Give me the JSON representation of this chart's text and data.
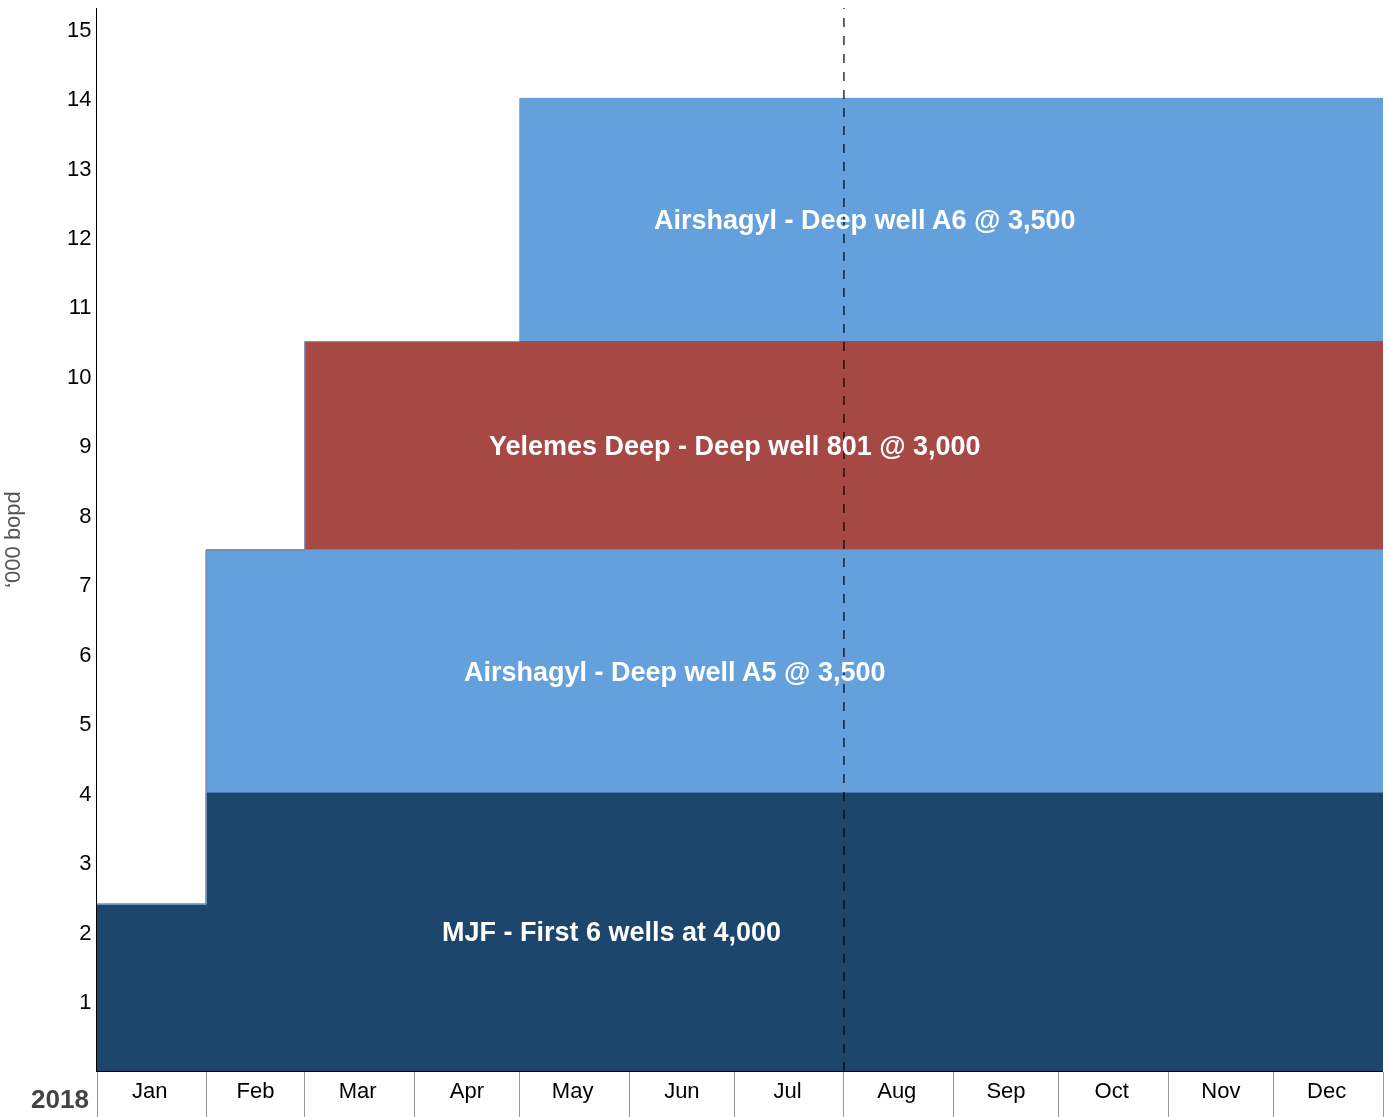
{
  "chart_data": {
    "type": "area",
    "stacked": true,
    "ylabel": "‘000 bopd",
    "x": [
      "2018-01",
      "2018-02",
      "2018-02",
      "2018-03",
      "2018-03",
      "2018-05",
      "2018-05",
      "2019-01"
    ],
    "xlim": [
      "2018-01",
      "2019-01"
    ],
    "xticks": [
      {
        "value": "2018-01-16",
        "label": "Jan"
      },
      {
        "value": "2018-02-15",
        "label": "Feb"
      },
      {
        "value": "2018-03-16",
        "label": "Mar"
      },
      {
        "value": "2018-04-16",
        "label": "Apr"
      },
      {
        "value": "2018-05-16",
        "label": "May"
      },
      {
        "value": "2018-06-16",
        "label": "Jun"
      },
      {
        "value": "2018-07-16",
        "label": "Jul"
      },
      {
        "value": "2018-08-16",
        "label": "Aug"
      },
      {
        "value": "2018-09-16",
        "label": "Sep"
      },
      {
        "value": "2018-10-16",
        "label": "Oct"
      },
      {
        "value": "2018-11-16",
        "label": "Nov"
      },
      {
        "value": "2018-12-16",
        "label": "Dec"
      }
    ],
    "ylim": [
      0,
      15.3
    ],
    "yticks": [
      1,
      2,
      3,
      4,
      5,
      6,
      7,
      8,
      9,
      10,
      11,
      12,
      13,
      14,
      15
    ],
    "grid": false,
    "legend": false,
    "series": [
      {
        "name": "MJF - First 6 wells at 4,000",
        "color": "#1d466d",
        "values": [
          2.4,
          2.4,
          4,
          4,
          4,
          4,
          4,
          4
        ]
      },
      {
        "name": "Airshagyl - Deep well A5 @ 3,500",
        "color": "#64a0dc",
        "values": [
          0,
          0,
          3.5,
          3.5,
          3.5,
          3.5,
          3.5,
          3.5
        ]
      },
      {
        "name": "Yelemes Deep - Deep well 801 @ 3,000",
        "color": "#a64944",
        "values": [
          0,
          0,
          0,
          0,
          3,
          3,
          3,
          3
        ]
      },
      {
        "name": "Airshagyl - Deep well A6 @ 3,500",
        "color": "#64a0dc",
        "values": [
          0,
          0,
          0,
          0,
          0,
          0,
          3.5,
          3.5
        ]
      }
    ],
    "ref_lines": [
      {
        "axis": "x",
        "value": "2018-08",
        "color": "#000000",
        "line_style": "dashed"
      }
    ],
    "annotations": [
      "2018"
    ]
  }
}
